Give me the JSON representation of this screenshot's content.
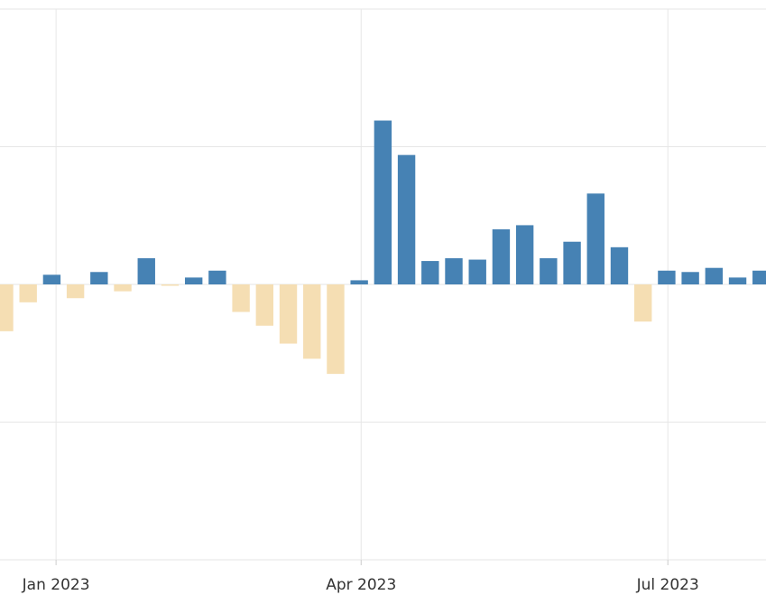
{
  "chart_data": {
    "type": "bar",
    "x": [
      0,
      1,
      2,
      3,
      4,
      5,
      6,
      7,
      8,
      9,
      10,
      11,
      12,
      13,
      14,
      15,
      16,
      17,
      18,
      19,
      20,
      21,
      22,
      23,
      24,
      25,
      26,
      27,
      28,
      29,
      30,
      31,
      32
    ],
    "values": [
      -0.34,
      -0.13,
      0.07,
      -0.1,
      0.09,
      -0.05,
      0.19,
      -0.01,
      0.05,
      0.1,
      -0.2,
      -0.3,
      -0.43,
      -0.54,
      -0.65,
      0.03,
      1.19,
      0.94,
      0.17,
      0.19,
      0.18,
      0.4,
      0.43,
      0.19,
      0.31,
      0.66,
      0.27,
      -0.27,
      0.1,
      0.09,
      0.12,
      0.05,
      0.1
    ],
    "positive_color": "#4682b4",
    "negative_color": "#f5deb3",
    "xlim": [
      -0.19,
      32.2
    ],
    "xticks": [
      {
        "value": 2.18,
        "label": "Jan 2023"
      },
      {
        "value": 15.08,
        "label": "Apr 2023"
      },
      {
        "value": 28.05,
        "label": "Jul 2023"
      }
    ],
    "ylim": [
      -2,
      2
    ],
    "yticks": [
      -2,
      -1,
      0,
      1,
      2
    ],
    "grid": true
  }
}
